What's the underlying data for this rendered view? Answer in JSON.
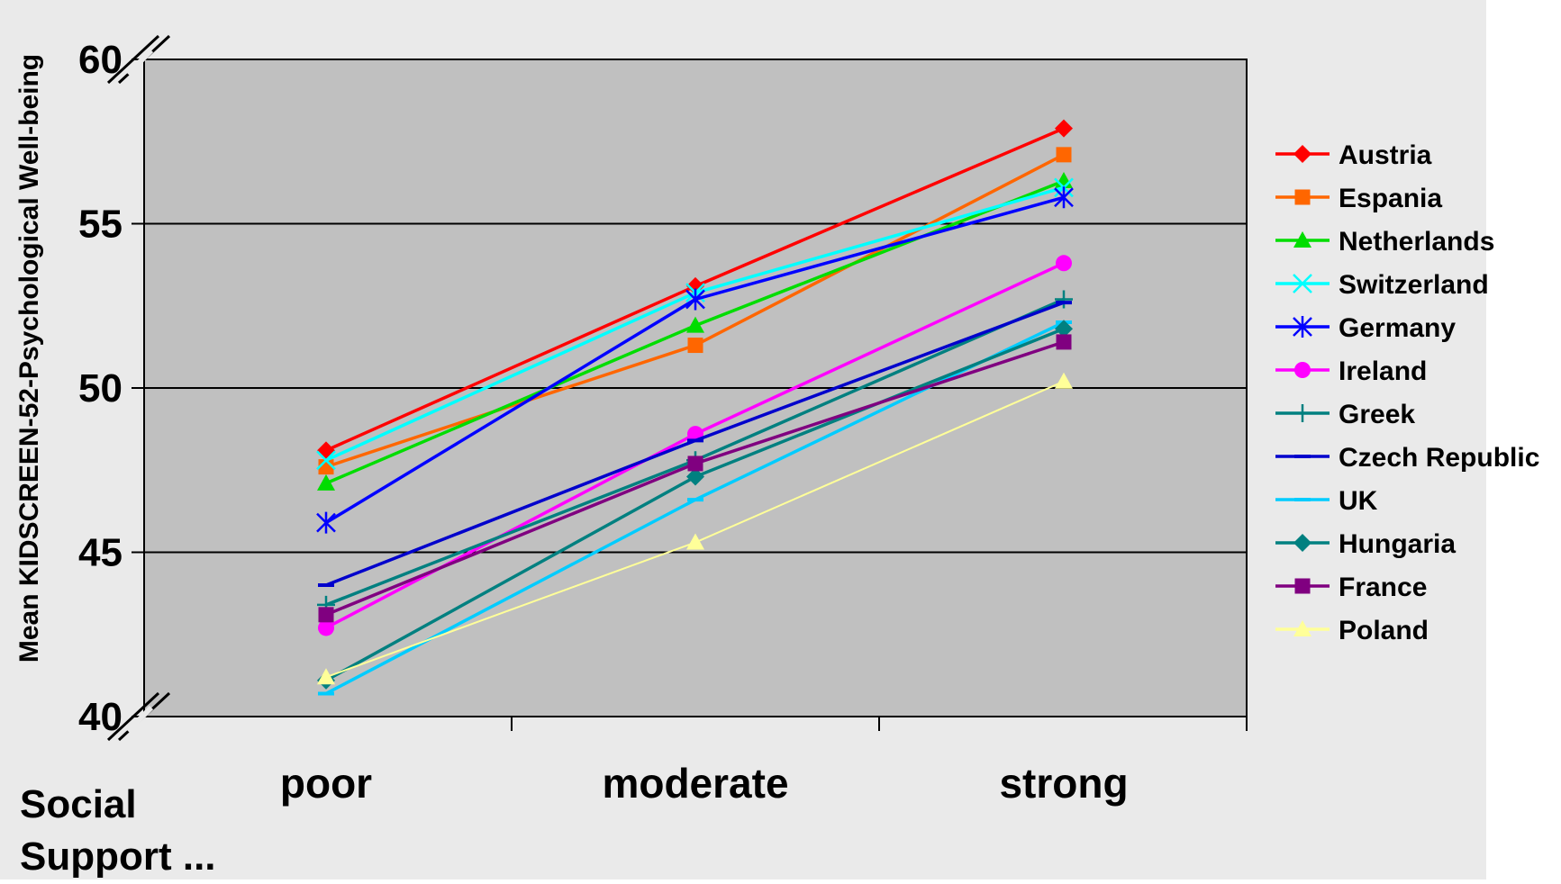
{
  "chart_data": {
    "type": "line",
    "title": "",
    "xlabel": "Social Support ...",
    "ylabel": "Mean KIDSCREEN-52-Psychological Well-being",
    "categories": [
      "poor",
      "moderate",
      "strong"
    ],
    "ylim": [
      40,
      60
    ],
    "yticks": [
      "40",
      "45",
      "50",
      "55",
      "60"
    ],
    "axis_break": true,
    "grid": "horizontal",
    "legend_position": "right",
    "plot_background": "#c0c0c0",
    "page_background": "#eaeaea",
    "series": [
      {
        "name": "Austria",
        "values": [
          48.1,
          53.1,
          57.9
        ],
        "color": "#ff0000",
        "marker": "diamond"
      },
      {
        "name": "Espania",
        "values": [
          47.6,
          51.3,
          57.1
        ],
        "color": "#ff6600",
        "marker": "square"
      },
      {
        "name": "Netherlands",
        "values": [
          47.1,
          51.9,
          56.3
        ],
        "color": "#00dd00",
        "marker": "triangle"
      },
      {
        "name": "Switzerland",
        "values": [
          47.8,
          52.9,
          56.1
        ],
        "color": "#00ffff",
        "marker": "x"
      },
      {
        "name": "Germany",
        "values": [
          45.9,
          52.7,
          55.8
        ],
        "color": "#0000ff",
        "marker": "star"
      },
      {
        "name": "Ireland",
        "values": [
          42.7,
          48.6,
          53.8
        ],
        "color": "#ff00ff",
        "marker": "circle"
      },
      {
        "name": "Greek",
        "values": [
          43.4,
          47.8,
          52.7
        ],
        "color": "#008080",
        "marker": "plus"
      },
      {
        "name": "Czech Republic",
        "values": [
          44.0,
          48.4,
          52.6
        ],
        "color": "#0000cc",
        "marker": "dash"
      },
      {
        "name": "UK",
        "values": [
          40.7,
          46.6,
          52.0
        ],
        "color": "#00ccff",
        "marker": "dash"
      },
      {
        "name": "Hungaria",
        "values": [
          41.1,
          47.3,
          51.8
        ],
        "color": "#008080",
        "marker": "diamond"
      },
      {
        "name": "France",
        "values": [
          43.1,
          47.7,
          51.4
        ],
        "color": "#800080",
        "marker": "square"
      },
      {
        "name": "Poland",
        "values": [
          41.2,
          45.3,
          50.2
        ],
        "color": "#ffff99",
        "marker": "triangle"
      }
    ]
  }
}
